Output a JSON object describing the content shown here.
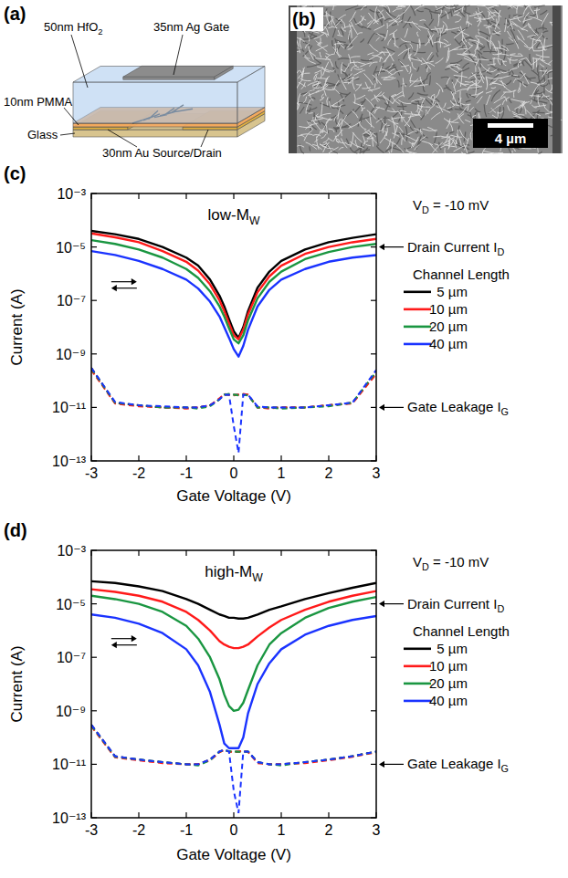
{
  "schematic": {
    "panel": "(a)",
    "labels": {
      "oxide": [
        "50nm HfO",
        {
          "sub": "2"
        }
      ],
      "gate": "35nm Ag Gate",
      "dielectric": "10nm PMMA",
      "substrate": "Glass",
      "contacts": "30nm Au Source/Drain"
    }
  },
  "micrograph": {
    "panel": "(b)",
    "scale_bar": "4 µm"
  },
  "chart_data": [
    {
      "type": "line",
      "panel": "(c)",
      "title": [
        "low-M",
        {
          "sub": "W"
        }
      ],
      "x_label": "Gate Voltage (V)",
      "y_label": "Current (A)",
      "annotations": [
        [
          "V",
          {
            "sub": "D"
          },
          " = -10 mV"
        ],
        [
          "Drain Current I",
          {
            "sub": "D"
          }
        ],
        [
          "Gate Leakage I",
          {
            "sub": "G"
          }
        ]
      ],
      "legend_title": "Channel Length",
      "legend": "right",
      "log": "y",
      "grid": false,
      "xlim": [
        -3,
        3
      ],
      "xticks": [
        -3,
        -2,
        -1,
        0,
        1,
        2,
        3
      ],
      "ylim": [
        1e-13,
        0.001
      ],
      "yticks": [
        {
          "value": 1e-13,
          "label": "10⁻¹³"
        },
        {
          "value": 1e-11,
          "label": "10⁻¹¹"
        },
        {
          "value": 1e-09,
          "label": "10⁻⁹"
        },
        {
          "value": 1e-07,
          "label": "10⁻⁷"
        },
        {
          "value": 1e-05,
          "label": "10⁻⁵"
        },
        {
          "value": 0.001,
          "label": "10⁻³"
        }
      ],
      "x": [
        -3,
        -2.5,
        -2,
        -1.5,
        -1,
        -0.75,
        -0.5,
        -0.3,
        -0.2,
        -0.1,
        0,
        0.1,
        0.2,
        0.3,
        0.5,
        0.75,
        1,
        1.5,
        2,
        2.5,
        3
      ],
      "series": [
        {
          "name": "5 µm",
          "color": "#000000",
          "values": [
            4e-05,
            3e-05,
            2e-05,
            1e-05,
            4e-06,
            2e-06,
            6e-07,
            1.5e-07,
            6e-08,
            2e-08,
            7e-09,
            4e-09,
            1e-08,
            4e-08,
            3e-07,
            1.2e-06,
            3e-06,
            8e-06,
            1.5e-05,
            2.2e-05,
            3e-05
          ],
          "gate_leakage": [
            3e-10,
            1.5e-11,
            1.2e-11,
            1e-11,
            1e-11,
            1e-11,
            1.2e-11,
            2e-11,
            3e-11,
            3e-11,
            3e-11,
            3e-11,
            3e-11,
            3e-11,
            1e-11,
            1e-11,
            1e-11,
            1e-11,
            1.2e-11,
            1.5e-11,
            2e-10
          ]
        },
        {
          "name": "10 µm",
          "color": "#ff1a1a",
          "values": [
            3.2e-05,
            2.3e-05,
            1.5e-05,
            7e-06,
            2.8e-06,
            1.3e-06,
            4e-07,
            1e-07,
            4e-08,
            1.4e-08,
            5e-09,
            3.5e-09,
            8e-09,
            3e-08,
            2e-07,
            8e-07,
            2e-06,
            5.5e-06,
            1e-05,
            1.5e-05,
            2e-05
          ],
          "gate_leakage": [
            2.5e-10,
            1.4e-11,
            1.1e-11,
            1e-11,
            9e-12,
            1e-11,
            1.2e-11,
            2.2e-11,
            3.2e-11,
            3e-11,
            2.8e-11,
            3e-11,
            3.2e-11,
            3e-11,
            1e-11,
            9e-12,
            1e-11,
            1e-11,
            1.2e-11,
            1.4e-11,
            1.8e-10
          ]
        },
        {
          "name": "20 µm",
          "color": "#1a9641",
          "values": [
            1.8e-05,
            1.3e-05,
            8e-06,
            4e-06,
            1.5e-06,
            7e-07,
            2.2e-07,
            6e-08,
            2.5e-08,
            9e-09,
            3.5e-09,
            2.5e-09,
            5e-09,
            1.8e-08,
            1.2e-07,
            5e-07,
            1.2e-06,
            3.5e-06,
            6.5e-06,
            1e-05,
            1.3e-05
          ],
          "gate_leakage": [
            2.8e-10,
            1.5e-11,
            1.2e-11,
            1e-11,
            1e-11,
            9e-12,
            1.1e-11,
            2e-11,
            3e-11,
            3.2e-11,
            3e-11,
            2.8e-11,
            3e-11,
            2.8e-11,
            1e-11,
            1e-11,
            9e-12,
            1e-11,
            1.1e-11,
            1.5e-11,
            2.2e-10
          ]
        },
        {
          "name": "40 µm",
          "color": "#1a33ff",
          "values": [
            7e-06,
            5e-06,
            3e-06,
            1.5e-06,
            6e-07,
            2.8e-07,
            9e-08,
            2.5e-08,
            1e-08,
            4e-09,
            1.5e-09,
            8e-10,
            2e-09,
            8e-09,
            6e-08,
            2.5e-07,
            6e-07,
            1.5e-06,
            2.8e-06,
            4e-06,
            5e-06
          ],
          "gate_leakage": [
            3e-10,
            1.6e-11,
            1.2e-11,
            1.1e-11,
            1e-11,
            1e-11,
            1.2e-11,
            2e-11,
            3e-11,
            3e-11,
            2e-12,
            2e-13,
            3e-11,
            3e-11,
            1.1e-11,
            1e-11,
            1e-11,
            1e-11,
            1.2e-11,
            1.5e-11,
            2.5e-10
          ]
        }
      ]
    },
    {
      "type": "line",
      "panel": "(d)",
      "title": [
        "high-M",
        {
          "sub": "W"
        }
      ],
      "x_label": "Gate Voltage (V)",
      "y_label": "Current (A)",
      "annotations": [
        [
          "V",
          {
            "sub": "D"
          },
          " = -10 mV"
        ],
        [
          "Drain Current I",
          {
            "sub": "D"
          }
        ],
        [
          "Gate Leakage I",
          {
            "sub": "G"
          }
        ]
      ],
      "legend_title": "Channel Length",
      "legend": "right",
      "log": "y",
      "grid": false,
      "xlim": [
        -3,
        3
      ],
      "xticks": [
        -3,
        -2,
        -1,
        0,
        1,
        2,
        3
      ],
      "ylim": [
        1e-13,
        0.001
      ],
      "yticks": [
        {
          "value": 1e-13,
          "label": "10⁻¹³"
        },
        {
          "value": 1e-11,
          "label": "10⁻¹¹"
        },
        {
          "value": 1e-09,
          "label": "10⁻⁹"
        },
        {
          "value": 1e-07,
          "label": "10⁻⁷"
        },
        {
          "value": 1e-05,
          "label": "10⁻⁵"
        },
        {
          "value": 0.001,
          "label": "10⁻³"
        }
      ],
      "x": [
        -3,
        -2.5,
        -2,
        -1.5,
        -1,
        -0.75,
        -0.5,
        -0.3,
        -0.2,
        -0.1,
        0,
        0.1,
        0.2,
        0.3,
        0.5,
        0.75,
        1,
        1.5,
        2,
        2.5,
        3
      ],
      "series": [
        {
          "name": "5 µm",
          "color": "#000000",
          "values": [
            7e-05,
            6e-05,
            4.5e-05,
            3e-05,
            1.5e-05,
            1e-05,
            6e-06,
            4e-06,
            3.5e-06,
            3e-06,
            3e-06,
            2.8e-06,
            2.8e-06,
            3e-06,
            4e-06,
            6e-06,
            8e-06,
            1.5e-05,
            2.5e-05,
            4e-05,
            6e-05
          ],
          "gate_leakage": [
            3e-10,
            2e-11,
            1.5e-11,
            1.2e-11,
            1e-11,
            1e-11,
            1.5e-11,
            3e-11,
            3.5e-11,
            3e-11,
            3e-11,
            3e-11,
            3e-11,
            3e-11,
            1.2e-11,
            1e-11,
            1e-11,
            1.2e-11,
            1.5e-11,
            2e-11,
            3e-11
          ]
        },
        {
          "name": "10 µm",
          "color": "#ff1a1a",
          "values": [
            3.5e-05,
            2.8e-05,
            2e-05,
            1.2e-05,
            5e-06,
            2.5e-06,
            1e-06,
            4e-07,
            3e-07,
            2.5e-07,
            2.2e-07,
            2.2e-07,
            2.5e-07,
            3e-07,
            6e-07,
            1.3e-06,
            2.5e-06,
            6e-06,
            1.2e-05,
            2e-05,
            3e-05
          ],
          "gate_leakage": [
            2.6e-10,
            1.8e-11,
            1.4e-11,
            1.1e-11,
            1e-11,
            1e-11,
            1.4e-11,
            2.8e-11,
            3.4e-11,
            3e-11,
            2.9e-11,
            3e-11,
            3.2e-11,
            2.9e-11,
            1.1e-11,
            1e-11,
            1e-11,
            1.1e-11,
            1.4e-11,
            1.9e-11,
            2.8e-11
          ]
        },
        {
          "name": "20 µm",
          "color": "#1a9641",
          "values": [
            2e-05,
            1.5e-05,
            1e-05,
            5e-06,
            1.5e-06,
            5e-07,
            1e-07,
            1.5e-08,
            4e-09,
            1.5e-09,
            1e-09,
            1.1e-09,
            2e-09,
            6e-09,
            5e-08,
            3e-07,
            8e-07,
            3e-06,
            7e-06,
            1.2e-05,
            1.8e-05
          ],
          "gate_leakage": [
            2.8e-10,
            1.9e-11,
            1.5e-11,
            1.2e-11,
            1e-11,
            9e-12,
            1.4e-11,
            3e-11,
            3.3e-11,
            3.1e-11,
            3e-11,
            2.9e-11,
            3e-11,
            3e-11,
            1.2e-11,
            1e-11,
            9e-12,
            1.2e-11,
            1.5e-11,
            2e-11,
            2.9e-11
          ]
        },
        {
          "name": "40 µm",
          "color": "#1a33ff",
          "values": [
            4e-06,
            3e-06,
            1.8e-06,
            8e-07,
            2e-07,
            5e-08,
            5e-09,
            3e-10,
            6e-11,
            4e-11,
            4e-11,
            4e-11,
            1e-10,
            8e-10,
            1e-08,
            6e-08,
            2e-07,
            7e-07,
            1.5e-06,
            2.5e-06,
            3.5e-06
          ],
          "gate_leakage": [
            3e-10,
            2e-11,
            1.5e-11,
            1.2e-11,
            1e-11,
            1e-11,
            1.5e-11,
            3e-11,
            3.5e-11,
            3e-11,
            1e-12,
            1.5e-13,
            3e-11,
            3e-11,
            1.2e-11,
            1e-11,
            1e-11,
            1.2e-11,
            1.5e-11,
            2e-11,
            3e-11
          ]
        }
      ]
    }
  ]
}
